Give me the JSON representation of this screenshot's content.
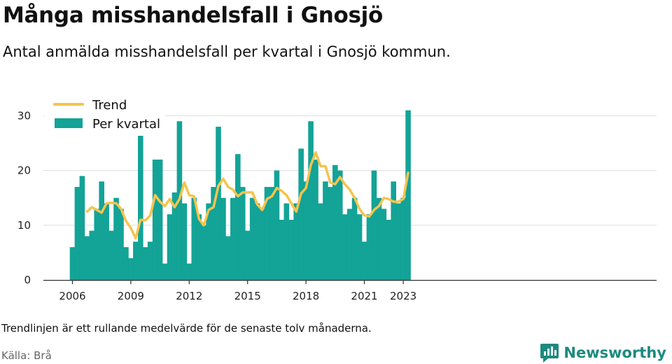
{
  "title": "Många misshandelsfall i Gnosjö",
  "subtitle": "Antal anmälda misshandelsfall per kvartal i Gnosjö kommun.",
  "footnote": "Trendlinjen är ett rullande medelvärde för de senaste tolv månaderna.",
  "source": "Källa: Brå",
  "brand": {
    "name": "Newsworthy",
    "icon": "newsworthy-logo-icon"
  },
  "colors": {
    "bar": "#13a397",
    "trend": "#f5c44e",
    "grid": "#dddddd",
    "axis": "#333333"
  },
  "chart_data": {
    "type": "bar",
    "x_start": "2006-Q1",
    "ylim": [
      0,
      32
    ],
    "yticks": [
      0,
      10,
      20,
      30
    ],
    "xticks": [
      "2006",
      "2009",
      "2012",
      "2015",
      "2018",
      "2021",
      "2023"
    ],
    "grid": true,
    "legend_position": "top-left",
    "series": [
      {
        "name": "Per kvartal",
        "kind": "bar",
        "values": [
          6,
          17,
          19,
          8,
          9,
          13,
          18,
          14,
          9,
          15,
          13,
          6,
          4,
          7,
          27,
          6,
          7,
          22,
          22,
          3,
          12,
          16,
          29,
          14,
          3,
          15,
          12,
          10,
          14,
          17,
          28,
          15,
          8,
          15,
          23,
          17,
          9,
          15,
          14,
          13,
          17,
          17,
          20,
          11,
          14,
          11,
          14,
          24,
          18,
          29,
          22,
          14,
          18,
          17,
          21,
          20,
          12,
          13,
          15,
          12,
          7,
          12,
          20,
          15,
          13,
          11,
          18,
          14,
          15,
          31
        ]
      },
      {
        "name": "Trend",
        "kind": "line",
        "values": [
          null,
          null,
          null,
          12.5,
          13.3,
          12.8,
          12.3,
          14.0,
          14.1,
          14.0,
          13.0,
          10.8,
          9.5,
          7.6,
          11.0,
          10.9,
          11.8,
          15.5,
          14.3,
          13.5,
          14.8,
          13.3,
          14.8,
          17.8,
          15.5,
          15.3,
          11.2,
          10.0,
          12.8,
          13.3,
          17.2,
          18.5,
          17.0,
          16.5,
          15.3,
          16.0,
          16.0,
          16.0,
          13.8,
          12.8,
          14.8,
          15.3,
          16.8,
          16.3,
          15.5,
          14.0,
          12.5,
          15.8,
          16.8,
          21.0,
          23.3,
          20.8,
          20.8,
          17.8,
          17.5,
          18.8,
          17.5,
          16.5,
          15.0,
          13.0,
          11.8,
          11.6,
          12.8,
          13.5,
          15.0,
          14.8,
          14.3,
          14.3,
          14.8,
          19.6
        ]
      }
    ]
  }
}
